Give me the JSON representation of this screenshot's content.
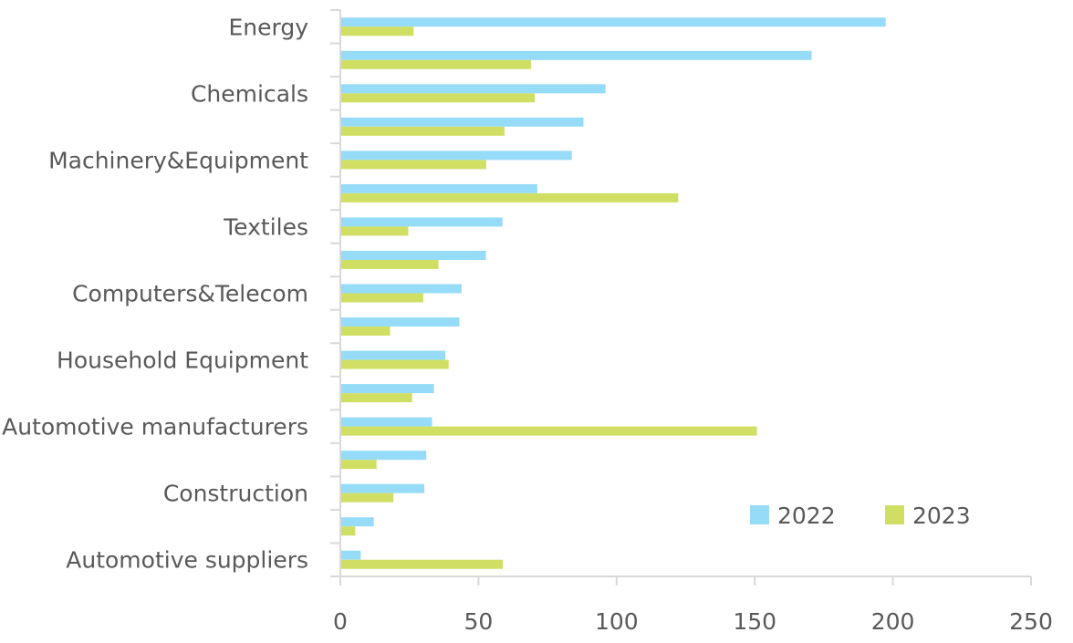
{
  "chart_data": {
    "type": "bar",
    "orientation": "horizontal",
    "title": "",
    "xlabel": "",
    "ylabel": "",
    "xlim": [
      0,
      250
    ],
    "xticks": [
      0,
      50,
      100,
      150,
      200,
      250
    ],
    "xtick_labels": [
      "0",
      "50",
      "100",
      "150",
      "200",
      "250"
    ],
    "grid": false,
    "legend_position": "bottom-right",
    "categories": [
      "Energy",
      "",
      "Chemicals",
      "",
      "Machinery&Equipment",
      "",
      "Textiles",
      "",
      "Computers&Telecom",
      "",
      "Household Equipment",
      "",
      "Automotive manufacturers",
      "",
      "Construction",
      "",
      "Automotive suppliers"
    ],
    "series": [
      {
        "name": "2022",
        "color": "#96dcf8",
        "values": [
          197.4,
          170.6,
          96,
          88,
          83.8,
          71.3,
          58.7,
          52.7,
          43.9,
          43.1,
          38,
          33.9,
          33.2,
          31.1,
          30.4,
          12.1,
          7.4
        ]
      },
      {
        "name": "2023",
        "color": "#d0df63",
        "values": [
          26.5,
          69,
          70.4,
          59.4,
          52.8,
          122.3,
          24.6,
          35.5,
          30,
          18,
          39.2,
          26,
          150.8,
          13.1,
          19.2,
          5.4,
          58.8
        ]
      }
    ]
  }
}
